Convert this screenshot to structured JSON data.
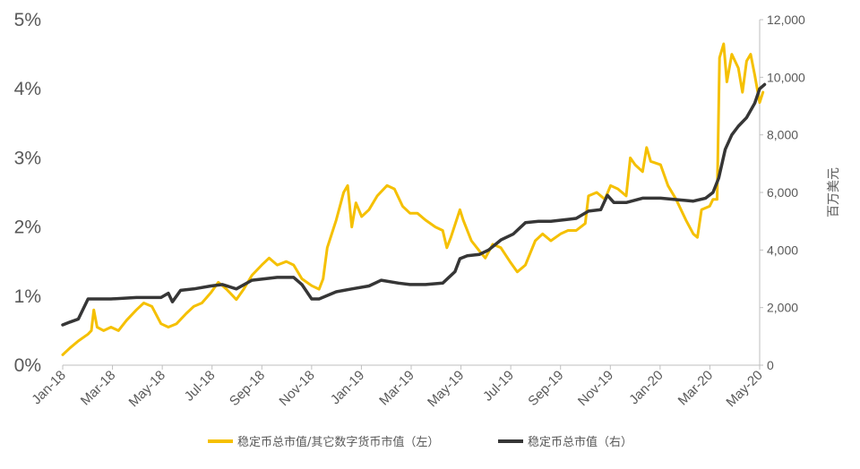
{
  "chart_data": {
    "type": "line",
    "title": "",
    "x_ticks": [
      "Jan-18",
      "Mar-18",
      "May-18",
      "Jul-18",
      "Sep-18",
      "Nov-18",
      "Jan-19",
      "Mar-19",
      "May-19",
      "Jul-19",
      "Sep-19",
      "Nov-19",
      "Jan-20",
      "Mar-20",
      "May-20"
    ],
    "y_left": {
      "ticks": [
        "0%",
        "1%",
        "2%",
        "3%",
        "4%",
        "5%"
      ],
      "range": [
        0,
        5
      ],
      "label": ""
    },
    "y_right": {
      "ticks": [
        "0",
        "2,000",
        "4,000",
        "6,000",
        "8,000",
        "10,000",
        "12,000"
      ],
      "range": [
        0,
        12000
      ],
      "label": "百万美元"
    },
    "grid": false,
    "legend_position": "bottom",
    "series": [
      {
        "name": "稳定币总市值/其它数字货币市值（左）",
        "axis": "left",
        "color": "#F5C000",
        "points": [
          [
            "2018-01-01",
            0.15
          ],
          [
            "2018-01-10",
            0.25
          ],
          [
            "2018-01-20",
            0.35
          ],
          [
            "2018-02-01",
            0.45
          ],
          [
            "2018-02-05",
            0.5
          ],
          [
            "2018-02-08",
            0.8
          ],
          [
            "2018-02-12",
            0.55
          ],
          [
            "2018-02-20",
            0.5
          ],
          [
            "2018-03-01",
            0.55
          ],
          [
            "2018-03-10",
            0.5
          ],
          [
            "2018-03-20",
            0.65
          ],
          [
            "2018-04-01",
            0.8
          ],
          [
            "2018-04-10",
            0.9
          ],
          [
            "2018-04-20",
            0.85
          ],
          [
            "2018-05-01",
            0.6
          ],
          [
            "2018-05-10",
            0.55
          ],
          [
            "2018-05-20",
            0.6
          ],
          [
            "2018-06-01",
            0.75
          ],
          [
            "2018-06-10",
            0.85
          ],
          [
            "2018-06-20",
            0.9
          ],
          [
            "2018-07-01",
            1.05
          ],
          [
            "2018-07-10",
            1.2
          ],
          [
            "2018-07-20",
            1.1
          ],
          [
            "2018-08-01",
            0.95
          ],
          [
            "2018-08-10",
            1.1
          ],
          [
            "2018-08-20",
            1.3
          ],
          [
            "2018-09-01",
            1.45
          ],
          [
            "2018-09-10",
            1.55
          ],
          [
            "2018-09-20",
            1.45
          ],
          [
            "2018-10-01",
            1.5
          ],
          [
            "2018-10-10",
            1.45
          ],
          [
            "2018-10-20",
            1.25
          ],
          [
            "2018-11-01",
            1.15
          ],
          [
            "2018-11-10",
            1.1
          ],
          [
            "2018-11-15",
            1.25
          ],
          [
            "2018-11-20",
            1.7
          ],
          [
            "2018-12-01",
            2.1
          ],
          [
            "2018-12-10",
            2.5
          ],
          [
            "2018-12-15",
            2.6
          ],
          [
            "2018-12-20",
            2.0
          ],
          [
            "2018-12-25",
            2.35
          ],
          [
            "2019-01-01",
            2.15
          ],
          [
            "2019-01-10",
            2.25
          ],
          [
            "2019-01-20",
            2.45
          ],
          [
            "2019-02-01",
            2.6
          ],
          [
            "2019-02-10",
            2.55
          ],
          [
            "2019-02-20",
            2.3
          ],
          [
            "2019-03-01",
            2.2
          ],
          [
            "2019-03-10",
            2.2
          ],
          [
            "2019-03-20",
            2.1
          ],
          [
            "2019-04-01",
            2.0
          ],
          [
            "2019-04-10",
            1.95
          ],
          [
            "2019-04-15",
            1.7
          ],
          [
            "2019-04-20",
            1.85
          ],
          [
            "2019-05-01",
            2.25
          ],
          [
            "2019-05-05",
            2.1
          ],
          [
            "2019-05-15",
            1.8
          ],
          [
            "2019-05-25",
            1.65
          ],
          [
            "2019-06-01",
            1.55
          ],
          [
            "2019-06-10",
            1.75
          ],
          [
            "2019-06-20",
            1.7
          ],
          [
            "2019-07-01",
            1.5
          ],
          [
            "2019-07-10",
            1.35
          ],
          [
            "2019-07-20",
            1.45
          ],
          [
            "2019-08-01",
            1.8
          ],
          [
            "2019-08-10",
            1.9
          ],
          [
            "2019-08-20",
            1.8
          ],
          [
            "2019-09-01",
            1.9
          ],
          [
            "2019-09-10",
            1.95
          ],
          [
            "2019-09-20",
            1.95
          ],
          [
            "2019-10-01",
            2.05
          ],
          [
            "2019-10-05",
            2.45
          ],
          [
            "2019-10-15",
            2.5
          ],
          [
            "2019-10-25",
            2.4
          ],
          [
            "2019-11-01",
            2.6
          ],
          [
            "2019-11-10",
            2.55
          ],
          [
            "2019-11-20",
            2.45
          ],
          [
            "2019-11-25",
            3.0
          ],
          [
            "2019-12-01",
            2.9
          ],
          [
            "2019-12-10",
            2.8
          ],
          [
            "2019-12-15",
            3.15
          ],
          [
            "2019-12-20",
            2.95
          ],
          [
            "2020-01-01",
            2.9
          ],
          [
            "2020-01-10",
            2.6
          ],
          [
            "2020-01-20",
            2.4
          ],
          [
            "2020-02-01",
            2.1
          ],
          [
            "2020-02-10",
            1.9
          ],
          [
            "2020-02-15",
            1.85
          ],
          [
            "2020-02-20",
            2.25
          ],
          [
            "2020-03-01",
            2.3
          ],
          [
            "2020-03-05",
            2.4
          ],
          [
            "2020-03-10",
            2.4
          ],
          [
            "2020-03-13",
            4.45
          ],
          [
            "2020-03-18",
            4.65
          ],
          [
            "2020-03-22",
            4.1
          ],
          [
            "2020-03-28",
            4.5
          ],
          [
            "2020-04-05",
            4.3
          ],
          [
            "2020-04-10",
            3.95
          ],
          [
            "2020-04-15",
            4.4
          ],
          [
            "2020-04-20",
            4.5
          ],
          [
            "2020-04-25",
            4.2
          ],
          [
            "2020-05-01",
            3.8
          ],
          [
            "2020-05-05",
            3.95
          ]
        ]
      },
      {
        "name": "稳定币总市值（右）",
        "axis": "right",
        "color": "#363636",
        "points": [
          [
            "2018-01-01",
            1400
          ],
          [
            "2018-01-10",
            1500
          ],
          [
            "2018-01-20",
            1600
          ],
          [
            "2018-02-01",
            2300
          ],
          [
            "2018-02-10",
            2300
          ],
          [
            "2018-03-01",
            2300
          ],
          [
            "2018-04-01",
            2350
          ],
          [
            "2018-05-01",
            2350
          ],
          [
            "2018-05-10",
            2500
          ],
          [
            "2018-05-15",
            2200
          ],
          [
            "2018-05-25",
            2600
          ],
          [
            "2018-06-10",
            2650
          ],
          [
            "2018-07-01",
            2750
          ],
          [
            "2018-07-15",
            2800
          ],
          [
            "2018-08-01",
            2650
          ],
          [
            "2018-08-20",
            2950
          ],
          [
            "2018-09-20",
            3050
          ],
          [
            "2018-10-10",
            3050
          ],
          [
            "2018-10-20",
            2800
          ],
          [
            "2018-11-01",
            2300
          ],
          [
            "2018-11-10",
            2300
          ],
          [
            "2018-12-01",
            2550
          ],
          [
            "2018-12-20",
            2650
          ],
          [
            "2019-01-10",
            2750
          ],
          [
            "2019-01-25",
            2950
          ],
          [
            "2019-02-15",
            2850
          ],
          [
            "2019-03-01",
            2800
          ],
          [
            "2019-03-20",
            2800
          ],
          [
            "2019-04-10",
            2850
          ],
          [
            "2019-04-25",
            3250
          ],
          [
            "2019-05-01",
            3700
          ],
          [
            "2019-05-10",
            3800
          ],
          [
            "2019-05-25",
            3850
          ],
          [
            "2019-06-05",
            4000
          ],
          [
            "2019-06-20",
            4350
          ],
          [
            "2019-07-05",
            4550
          ],
          [
            "2019-07-20",
            4950
          ],
          [
            "2019-08-05",
            5000
          ],
          [
            "2019-08-20",
            5000
          ],
          [
            "2019-09-05",
            5050
          ],
          [
            "2019-09-20",
            5100
          ],
          [
            "2019-10-05",
            5350
          ],
          [
            "2019-10-20",
            5400
          ],
          [
            "2019-10-28",
            5900
          ],
          [
            "2019-11-05",
            5650
          ],
          [
            "2019-11-20",
            5650
          ],
          [
            "2019-12-10",
            5800
          ],
          [
            "2020-01-01",
            5800
          ],
          [
            "2020-01-20",
            5750
          ],
          [
            "2020-02-10",
            5700
          ],
          [
            "2020-02-25",
            5800
          ],
          [
            "2020-03-05",
            6000
          ],
          [
            "2020-03-12",
            6500
          ],
          [
            "2020-03-20",
            7500
          ],
          [
            "2020-03-28",
            8000
          ],
          [
            "2020-04-05",
            8300
          ],
          [
            "2020-04-15",
            8600
          ],
          [
            "2020-04-25",
            9100
          ],
          [
            "2020-05-01",
            9600
          ],
          [
            "2020-05-07",
            9750
          ]
        ]
      }
    ]
  }
}
